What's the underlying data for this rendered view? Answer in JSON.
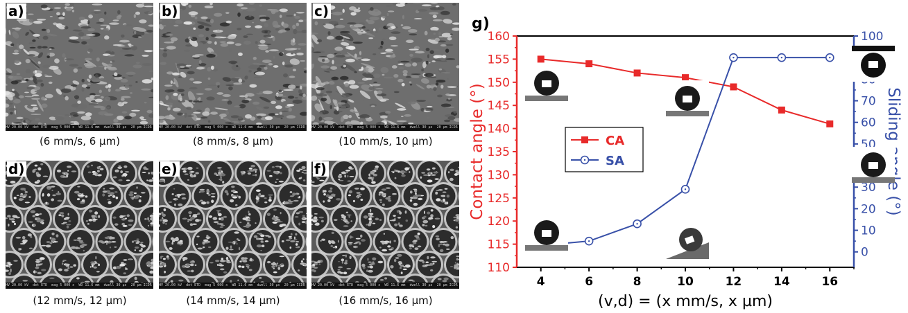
{
  "panels": [
    {
      "label": "a)",
      "caption": "(6 mm/s, 6 µm)",
      "texture": "rough"
    },
    {
      "label": "b)",
      "caption": "(8 mm/s, 8 µm)",
      "texture": "rough"
    },
    {
      "label": "c)",
      "caption": "(10 mm/s, 10 µm)",
      "texture": "rough"
    },
    {
      "label": "d)",
      "caption": "(12 mm/s, 12 µm)",
      "texture": "craters"
    },
    {
      "label": "e)",
      "caption": "(14 mm/s, 14 µm)",
      "texture": "craters"
    },
    {
      "label": "f)",
      "caption": "(16 mm/s, 16 µm)",
      "texture": "craters"
    }
  ],
  "sem_info": {
    "headers": [
      "HV",
      "det",
      "mag",
      "WD",
      "dwell",
      "20 µm"
    ],
    "values": [
      "20.00 kV",
      "ETD",
      "5 000 x",
      "11.6 mm",
      "30 µs",
      "ICDR @ FEI QUANTA F250"
    ]
  },
  "chart_data": {
    "type": "line",
    "panel_label": "g)",
    "x": [
      4,
      6,
      8,
      10,
      12,
      14,
      16
    ],
    "xticks": [
      4,
      6,
      8,
      10,
      12,
      14,
      16
    ],
    "xlim": [
      3,
      17
    ],
    "xlabel": "(v,d) = (x mm/s, x µm)",
    "series": [
      {
        "name": "CA",
        "axis": "left",
        "values": [
          155,
          154,
          152,
          151,
          149,
          144,
          141
        ],
        "color": "#e82a2a",
        "marker": "filled-square"
      },
      {
        "name": "SA",
        "axis": "right",
        "values": [
          3,
          5,
          13,
          29,
          90,
          90,
          90
        ],
        "color": "#3850a8",
        "marker": "open-circle"
      }
    ],
    "left_axis": {
      "label": "Contact angle (°)",
      "ylim": [
        110,
        160
      ],
      "ticks": [
        110,
        115,
        120,
        125,
        130,
        135,
        140,
        145,
        150,
        155,
        160
      ],
      "color": "#e82a2a"
    },
    "right_axis": {
      "label": "Sliding angle (°)",
      "ylim": [
        -7.14,
        100
      ],
      "ticks": [
        0,
        10,
        20,
        30,
        40,
        50,
        60,
        70,
        80,
        90,
        100
      ],
      "color": "#3850a8"
    },
    "legend": "left-middle",
    "grid": false
  },
  "colors": {
    "ca": "#e82a2a",
    "sa": "#3850a8"
  }
}
